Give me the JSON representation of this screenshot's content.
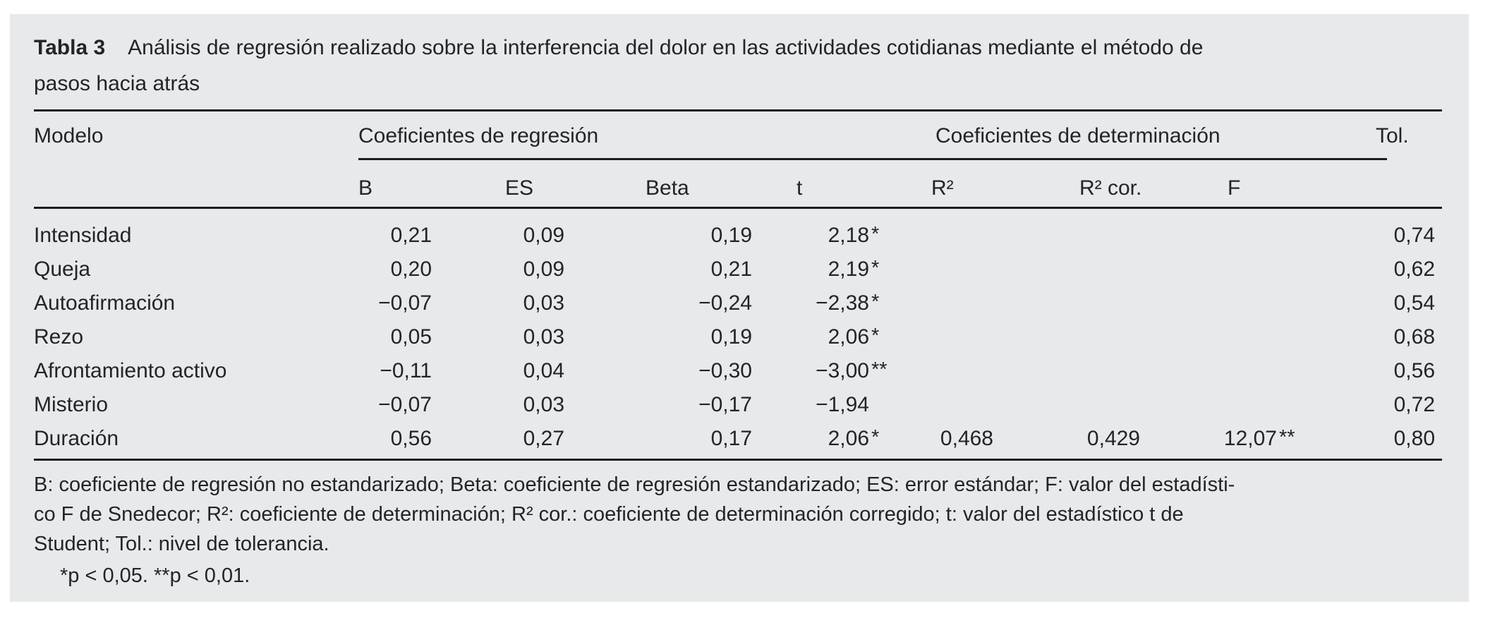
{
  "title": {
    "label": "Tabla 3",
    "line1": "Análisis de regresión realizado sobre la interferencia del dolor en las actividades cotidianas mediante el método de",
    "line2": "pasos hacia atrás"
  },
  "table": {
    "headers": {
      "model": "Modelo",
      "group_regression": "Coeficientes de regresión",
      "group_determination": "Coeficientes de determinación",
      "tol": "Tol.",
      "b": "B",
      "es": "ES",
      "beta": "Beta",
      "t": "t",
      "r2": "R²",
      "r2cor": "R² cor.",
      "f": "F"
    },
    "rows": [
      {
        "model": "Intensidad",
        "b": "0,21",
        "es": "0,09",
        "beta": "0,19",
        "t": "2,18",
        "t_star": "*",
        "r2": "",
        "r2cor": "",
        "f": "",
        "f_star": "",
        "tol": "0,74"
      },
      {
        "model": "Queja",
        "b": "0,20",
        "es": "0,09",
        "beta": "0,21",
        "t": "2,19",
        "t_star": "*",
        "r2": "",
        "r2cor": "",
        "f": "",
        "f_star": "",
        "tol": "0,62"
      },
      {
        "model": "Autoafirmación",
        "b": "−0,07",
        "es": "0,03",
        "beta": "−0,24",
        "t": "−2,38",
        "t_star": "*",
        "r2": "",
        "r2cor": "",
        "f": "",
        "f_star": "",
        "tol": "0,54"
      },
      {
        "model": "Rezo",
        "b": "0,05",
        "es": "0,03",
        "beta": "0,19",
        "t": "2,06",
        "t_star": "*",
        "r2": "",
        "r2cor": "",
        "f": "",
        "f_star": "",
        "tol": "0,68"
      },
      {
        "model": "Afrontamiento activo",
        "b": "−0,11",
        "es": "0,04",
        "beta": "−0,30",
        "t": "−3,00",
        "t_star": "**",
        "r2": "",
        "r2cor": "",
        "f": "",
        "f_star": "",
        "tol": "0,56"
      },
      {
        "model": "Misterio",
        "b": "−0,07",
        "es": "0,03",
        "beta": "−0,17",
        "t": "−1,94",
        "t_star": "",
        "r2": "",
        "r2cor": "",
        "f": "",
        "f_star": "",
        "tol": "0,72"
      },
      {
        "model": "Duración",
        "b": "0,56",
        "es": "0,27",
        "beta": "0,17",
        "t": "2,06",
        "t_star": "*",
        "r2": "0,468",
        "r2cor": "0,429",
        "f": "12,07",
        "f_star": "**",
        "tol": "0,80"
      }
    ]
  },
  "footnotes": {
    "line1": "B: coeficiente de regresión no estandarizado; Beta: coeficiente de regresión estandarizado; ES: error estándar; F: valor del estadísti-",
    "line2": "co F de Snedecor; R²: coeficiente de determinación; R² cor.: coeficiente de determinación corregido; t: valor del estadístico t de",
    "line3": "Student; Tol.: nivel de tolerancia.",
    "significance": "*p < 0,05. **p < 0,01."
  },
  "colors": {
    "panel_bg": "#e8e9ea",
    "text": "#232427",
    "rule": "#1c1c1e"
  }
}
